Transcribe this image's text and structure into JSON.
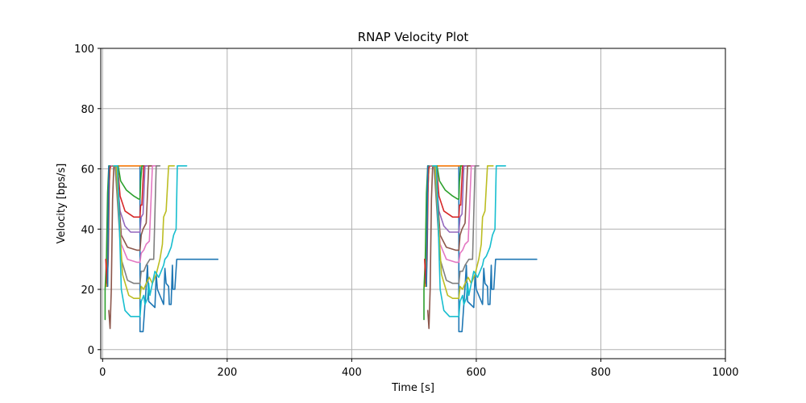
{
  "chart_data": {
    "type": "line",
    "title": "RNAP Velocity Plot",
    "xlabel": "Time [s]",
    "ylabel": "Velocity [bps/s]",
    "xlim": [
      -3,
      1000
    ],
    "ylim": [
      -3,
      100
    ],
    "grid": true,
    "x_ticks": [
      0,
      200,
      400,
      600,
      800,
      1000
    ],
    "y_ticks": [
      0,
      20,
      40,
      60,
      80,
      100
    ],
    "x_tick_labels": [
      "0",
      "200",
      "400",
      "600",
      "800",
      "1000"
    ],
    "y_tick_labels": [
      "0",
      "20",
      "40",
      "60",
      "80",
      "100"
    ],
    "series": [
      {
        "color": "#1f77b4",
        "points": [
          [
            8,
            21
          ],
          [
            10,
            52
          ],
          [
            12,
            61
          ],
          [
            15,
            61
          ],
          [
            60,
            61
          ],
          [
            60,
            6
          ],
          [
            65,
            6
          ],
          [
            70,
            21
          ],
          [
            72,
            28
          ],
          [
            74,
            16
          ],
          [
            84,
            14
          ],
          [
            86,
            25
          ],
          [
            88,
            20
          ],
          [
            98,
            15
          ],
          [
            100,
            27
          ],
          [
            102,
            22
          ],
          [
            106,
            21
          ],
          [
            107,
            15
          ],
          [
            110,
            15
          ],
          [
            112,
            28
          ],
          [
            113,
            20
          ],
          [
            116,
            20
          ],
          [
            119,
            30
          ],
          [
            135,
            30
          ],
          [
            185,
            30
          ]
        ]
      },
      {
        "color": "#ff7f0e",
        "points": [
          [
            6,
            21
          ],
          [
            8,
            30
          ],
          [
            10,
            52
          ],
          [
            12,
            61
          ],
          [
            15,
            61
          ],
          [
            58,
            61
          ],
          [
            61,
            61
          ],
          [
            65,
            61
          ],
          [
            80,
            61
          ]
        ]
      },
      {
        "color": "#2ca02c",
        "points": [
          [
            4,
            10
          ],
          [
            4,
            20
          ],
          [
            6,
            30
          ],
          [
            8,
            52
          ],
          [
            10,
            61
          ],
          [
            15,
            61
          ],
          [
            25,
            61
          ],
          [
            29,
            56
          ],
          [
            38,
            53
          ],
          [
            50,
            51
          ],
          [
            58,
            50
          ],
          [
            60,
            50
          ],
          [
            61,
            56
          ],
          [
            63,
            61
          ],
          [
            70,
            61
          ]
        ]
      },
      {
        "color": "#d62728",
        "points": [
          [
            5,
            30
          ],
          [
            7,
            22
          ],
          [
            9,
            30
          ],
          [
            11,
            60
          ],
          [
            14,
            61
          ],
          [
            24,
            61
          ],
          [
            28,
            51
          ],
          [
            36,
            46
          ],
          [
            50,
            44
          ],
          [
            58,
            44
          ],
          [
            60,
            44
          ],
          [
            61,
            48
          ],
          [
            63,
            48
          ],
          [
            66,
            61
          ],
          [
            70,
            61
          ]
        ]
      },
      {
        "color": "#9467bd",
        "points": [
          [
            13,
            61
          ],
          [
            22,
            61
          ],
          [
            28,
            46
          ],
          [
            36,
            41
          ],
          [
            45,
            39
          ],
          [
            58,
            39
          ],
          [
            60,
            39
          ],
          [
            62,
            44
          ],
          [
            65,
            45
          ],
          [
            68,
            61
          ],
          [
            72,
            61
          ]
        ]
      },
      {
        "color": "#8c564b",
        "points": [
          [
            10,
            13
          ],
          [
            12,
            7
          ],
          [
            14,
            20
          ],
          [
            16,
            50
          ],
          [
            18,
            61
          ],
          [
            22,
            61
          ],
          [
            30,
            38
          ],
          [
            40,
            34
          ],
          [
            55,
            33
          ],
          [
            60,
            33
          ],
          [
            62,
            38
          ],
          [
            65,
            40
          ],
          [
            70,
            42
          ],
          [
            74,
            61
          ],
          [
            80,
            61
          ]
        ]
      },
      {
        "color": "#e377c2",
        "points": [
          [
            15,
            61
          ],
          [
            20,
            61
          ],
          [
            30,
            35
          ],
          [
            40,
            30
          ],
          [
            55,
            29
          ],
          [
            60,
            29
          ],
          [
            62,
            32
          ],
          [
            66,
            33
          ],
          [
            70,
            35
          ],
          [
            75,
            36
          ],
          [
            80,
            61
          ],
          [
            88,
            61
          ]
        ]
      },
      {
        "color": "#7f7f7f",
        "points": [
          [
            16,
            61
          ],
          [
            20,
            61
          ],
          [
            30,
            30
          ],
          [
            40,
            23
          ],
          [
            50,
            22
          ],
          [
            60,
            22
          ],
          [
            62,
            26
          ],
          [
            66,
            26
          ],
          [
            70,
            28
          ],
          [
            76,
            30
          ],
          [
            82,
            30
          ],
          [
            86,
            61
          ],
          [
            92,
            61
          ]
        ]
      },
      {
        "color": "#bcbd22",
        "points": [
          [
            17,
            61
          ],
          [
            22,
            61
          ],
          [
            32,
            25
          ],
          [
            42,
            18
          ],
          [
            50,
            17
          ],
          [
            58,
            17
          ],
          [
            60,
            17
          ],
          [
            62,
            21
          ],
          [
            66,
            20
          ],
          [
            70,
            22
          ],
          [
            75,
            24
          ],
          [
            80,
            22
          ],
          [
            86,
            25
          ],
          [
            92,
            30
          ],
          [
            96,
            35
          ],
          [
            98,
            44
          ],
          [
            102,
            46
          ],
          [
            106,
            61
          ],
          [
            115,
            61
          ]
        ]
      },
      {
        "color": "#17becf",
        "points": [
          [
            18,
            61
          ],
          [
            24,
            61
          ],
          [
            30,
            20
          ],
          [
            36,
            13
          ],
          [
            45,
            11
          ],
          [
            58,
            11
          ],
          [
            60,
            11
          ],
          [
            62,
            16
          ],
          [
            66,
            18
          ],
          [
            68,
            15
          ],
          [
            72,
            17
          ],
          [
            74,
            22
          ],
          [
            76,
            18
          ],
          [
            80,
            22
          ],
          [
            84,
            26
          ],
          [
            90,
            24
          ],
          [
            98,
            28
          ],
          [
            100,
            30
          ],
          [
            104,
            31
          ],
          [
            110,
            34
          ],
          [
            114,
            38
          ],
          [
            118,
            40
          ],
          [
            120,
            61
          ],
          [
            135,
            61
          ]
        ]
      },
      {
        "color": "#1f77b4",
        "points": [
          [
            8,
            21
          ],
          [
            10,
            61
          ]
        ]
      }
    ]
  }
}
